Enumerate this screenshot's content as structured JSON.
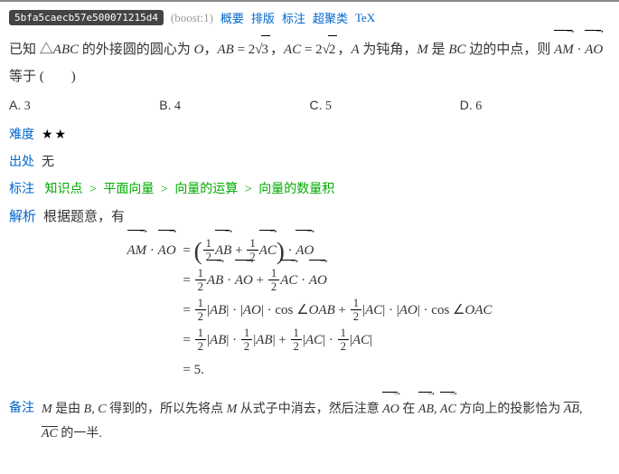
{
  "header": {
    "hash": "5bfa5caecb57e500071215d4",
    "boost": "(boost:1)",
    "links": [
      "概要",
      "排版",
      "标注",
      "超聚类",
      "TeX"
    ]
  },
  "problem": {
    "pre1": "已知 ",
    "tri": "△",
    "ABC": "ABC",
    "t1": " 的外接圆的圆心为 ",
    "O": "O",
    "t2": "，",
    "AB": "AB",
    "eq1": " = 2",
    "rt3": "3",
    "t3": "，",
    "AC": "AC",
    "eq2": " = 2",
    "rt2": "2",
    "t4": "，",
    "A": "A",
    "t5": " 为钝角，",
    "M": "M",
    "t6": " 是 ",
    "BC": "BC",
    "t7": " 边的中点，则 ",
    "AM": "AM",
    "dot": " · ",
    "AO": "AO",
    "t8": " 等于 (  )"
  },
  "choices": {
    "a": {
      "label": "A.",
      "val": "3"
    },
    "b": {
      "label": "B.",
      "val": "4"
    },
    "c": {
      "label": "C.",
      "val": "5"
    },
    "d": {
      "label": "D.",
      "val": "6"
    }
  },
  "difficulty": {
    "label": "难度",
    "stars": "★★"
  },
  "source": {
    "label": "出处",
    "value": "无"
  },
  "tags": {
    "label": "标注",
    "path": [
      "知识点",
      "平面向量",
      "向量的运算",
      "向量的数量积"
    ]
  },
  "solution": {
    "label": "解析",
    "intro": "根据题意，有",
    "lhs_vec1": "AM",
    "lhs_vec2": "AO",
    "dot": " · ",
    "eq": " = ",
    "half_n": "1",
    "half_d": "2",
    "AB": "AB",
    "AC": "AC",
    "AO": "AO",
    "absAB": "|AB|",
    "absAO": "|AO|",
    "absAC": "|AC|",
    "cos": "cos",
    "angle": "∠",
    "OAB": "OAB",
    "OAC": "OAC",
    "plus": " + ",
    "result": "= 5."
  },
  "note": {
    "label": "备注",
    "t1": "M",
    "t2": " 是由 ",
    "t3": "B, C",
    "t4": " 得到的，所以先将点 ",
    "t5": "M",
    "t6": " 从式子中消去，然后注意 ",
    "AO": "AO",
    "t7": " 在 ",
    "AB": "AB",
    "t8": ", ",
    "AC": "AC",
    "t9": " 方向上的投影恰为 ",
    "sAB": "AB",
    "t10": ", ",
    "sAC": "AC",
    "t11": " 的一半."
  }
}
